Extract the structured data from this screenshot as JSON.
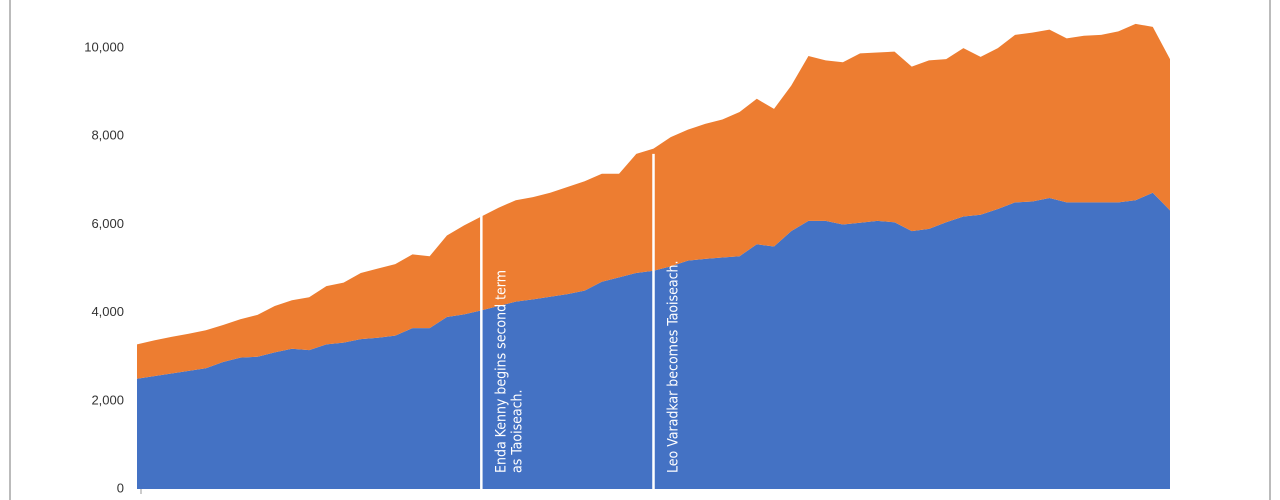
{
  "chart_data": {
    "type": "stacked_area",
    "categories": [
      null,
      null,
      null,
      null,
      null,
      null,
      null,
      null,
      null,
      null,
      null,
      null,
      null,
      null,
      null,
      null,
      null,
      null,
      null,
      null,
      null,
      null,
      null,
      null,
      null,
      null,
      null,
      null,
      null,
      null,
      null,
      null,
      null,
      null,
      null,
      null,
      null,
      null,
      null,
      null,
      null,
      null,
      null,
      null,
      null,
      null,
      null,
      null,
      null,
      null,
      null,
      null,
      null,
      null,
      null,
      null,
      null,
      null,
      null,
      null,
      null
    ],
    "series": [
      {
        "color": "#4472c4",
        "values": [
          2500,
          2560,
          2620,
          2680,
          2740,
          2880,
          2980,
          3000,
          3100,
          3180,
          3150,
          3280,
          3320,
          3400,
          3430,
          3480,
          3650,
          3650,
          3900,
          3960,
          4050,
          4150,
          4250,
          4300,
          4360,
          4420,
          4500,
          4700,
          4800,
          4900,
          4950,
          5050,
          5180,
          5220,
          5250,
          5280,
          5550,
          5500,
          5850,
          6080,
          6080,
          6000,
          6040,
          6080,
          6050,
          5850,
          5900,
          6050,
          6180,
          6220,
          6350,
          6500,
          6520,
          6600,
          6500,
          6500,
          6500,
          6500,
          6550,
          6720,
          6320
        ]
      },
      {
        "color": "#ed7d31",
        "values": [
          780,
          810,
          830,
          840,
          860,
          840,
          870,
          950,
          1050,
          1100,
          1200,
          1320,
          1360,
          1500,
          1570,
          1620,
          1670,
          1630,
          1850,
          2020,
          2130,
          2230,
          2300,
          2320,
          2360,
          2430,
          2480,
          2450,
          2350,
          2700,
          2770,
          2930,
          2970,
          3060,
          3130,
          3270,
          3300,
          3120,
          3300,
          3740,
          3640,
          3680,
          3840,
          3820,
          3870,
          3730,
          3820,
          3700,
          3820,
          3580,
          3650,
          3800,
          3830,
          3820,
          3720,
          3780,
          3800,
          3880,
          4000,
          3760,
          3430
        ]
      }
    ],
    "ylim": [
      0,
      11000
    ],
    "yticks": [
      0,
      {
        "value": 2000,
        "label": "2,000"
      },
      {
        "value": 4000,
        "label": "4,000"
      },
      {
        "value": 6000,
        "label": "6,000"
      },
      {
        "value": 8000,
        "label": "8,000"
      },
      {
        "value": 10000,
        "label": "10,000"
      }
    ],
    "annotations": [
      {
        "x": 20,
        "lines": [
          "Enda Kenny begins second term",
          "as Taoiseach."
        ]
      },
      {
        "x": 30,
        "lines": [
          "Leo Varadkar becomes Taoiseach."
        ]
      }
    ]
  }
}
